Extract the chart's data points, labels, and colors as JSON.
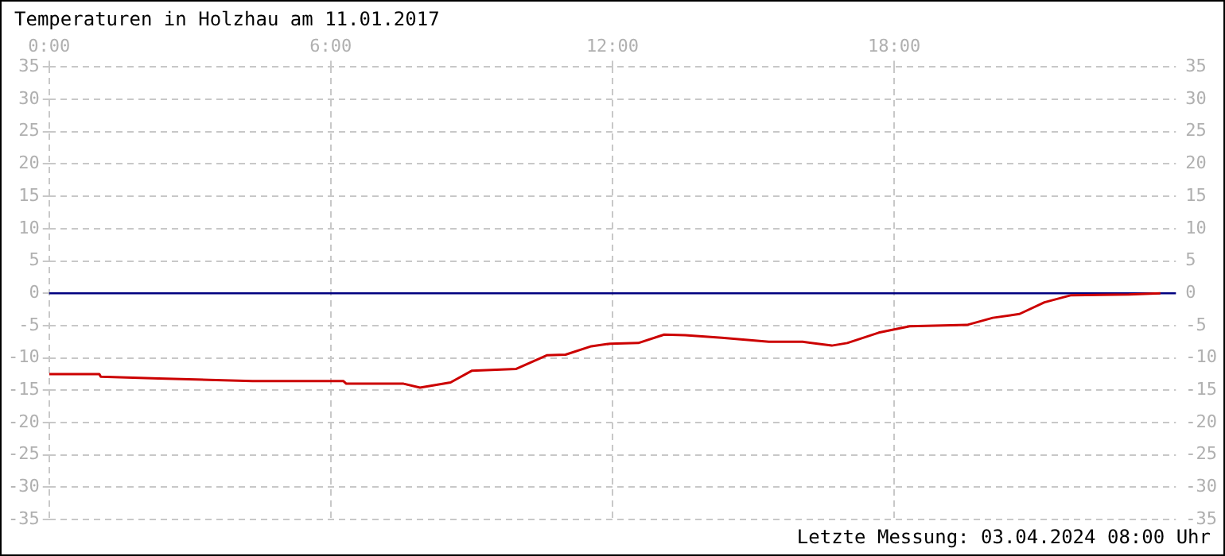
{
  "chart_data": {
    "type": "line",
    "title": "Temperaturen in Holzhau am 11.01.2017",
    "annotations": [
      "Letzte Messung: 03.04.2024 08:00 Uhr"
    ],
    "x": [
      0,
      1.07,
      1.1,
      2.33,
      3.4,
      4.33,
      6.27,
      6.33,
      7.55,
      7.9,
      8.55,
      9.0,
      9.95,
      10.6,
      11.0,
      11.55,
      11.95,
      12.55,
      13.1,
      13.55,
      14.33,
      15.33,
      16.05,
      16.67,
      17.0,
      17.67,
      18.33,
      19.55,
      20.1,
      20.67,
      21.2,
      21.77,
      23.0,
      23.67
    ],
    "series": [
      {
        "color": "#cc0000",
        "values": [
          -12.5,
          -12.5,
          -12.9,
          -13.2,
          -13.4,
          -13.6,
          -13.6,
          -14.0,
          -14.0,
          -14.6,
          -13.8,
          -12.0,
          -11.7,
          -9.6,
          -9.5,
          -8.2,
          -7.8,
          -7.7,
          -6.4,
          -6.5,
          -6.9,
          -7.5,
          -7.5,
          -8.1,
          -7.7,
          -6.1,
          -5.1,
          -4.9,
          -3.8,
          -3.2,
          -1.4,
          -0.3,
          -0.2,
          0.0
        ]
      }
    ],
    "xlim": [
      0,
      24
    ],
    "xticks": [
      {
        "value": 0,
        "label": "0:00"
      },
      {
        "value": 6,
        "label": "6:00"
      },
      {
        "value": 12,
        "label": "12:00"
      },
      {
        "value": 18,
        "label": "18:00"
      }
    ],
    "ylim": [
      -35,
      35
    ],
    "yticks": [
      -35,
      -30,
      -25,
      -20,
      -15,
      -10,
      -5,
      0,
      5,
      10,
      15,
      20,
      25,
      30,
      35
    ],
    "y2lim": [
      -35,
      35
    ],
    "y2ticks": [
      -35,
      -30,
      -25,
      -20,
      -15,
      -10,
      -5,
      0,
      5,
      10,
      15,
      20,
      25,
      30,
      35
    ],
    "ref_lines": [
      {
        "axis": "y",
        "value": 0,
        "color": "#000080"
      }
    ],
    "grid": true,
    "legend": false,
    "marker": "none",
    "line_style": "solid"
  }
}
